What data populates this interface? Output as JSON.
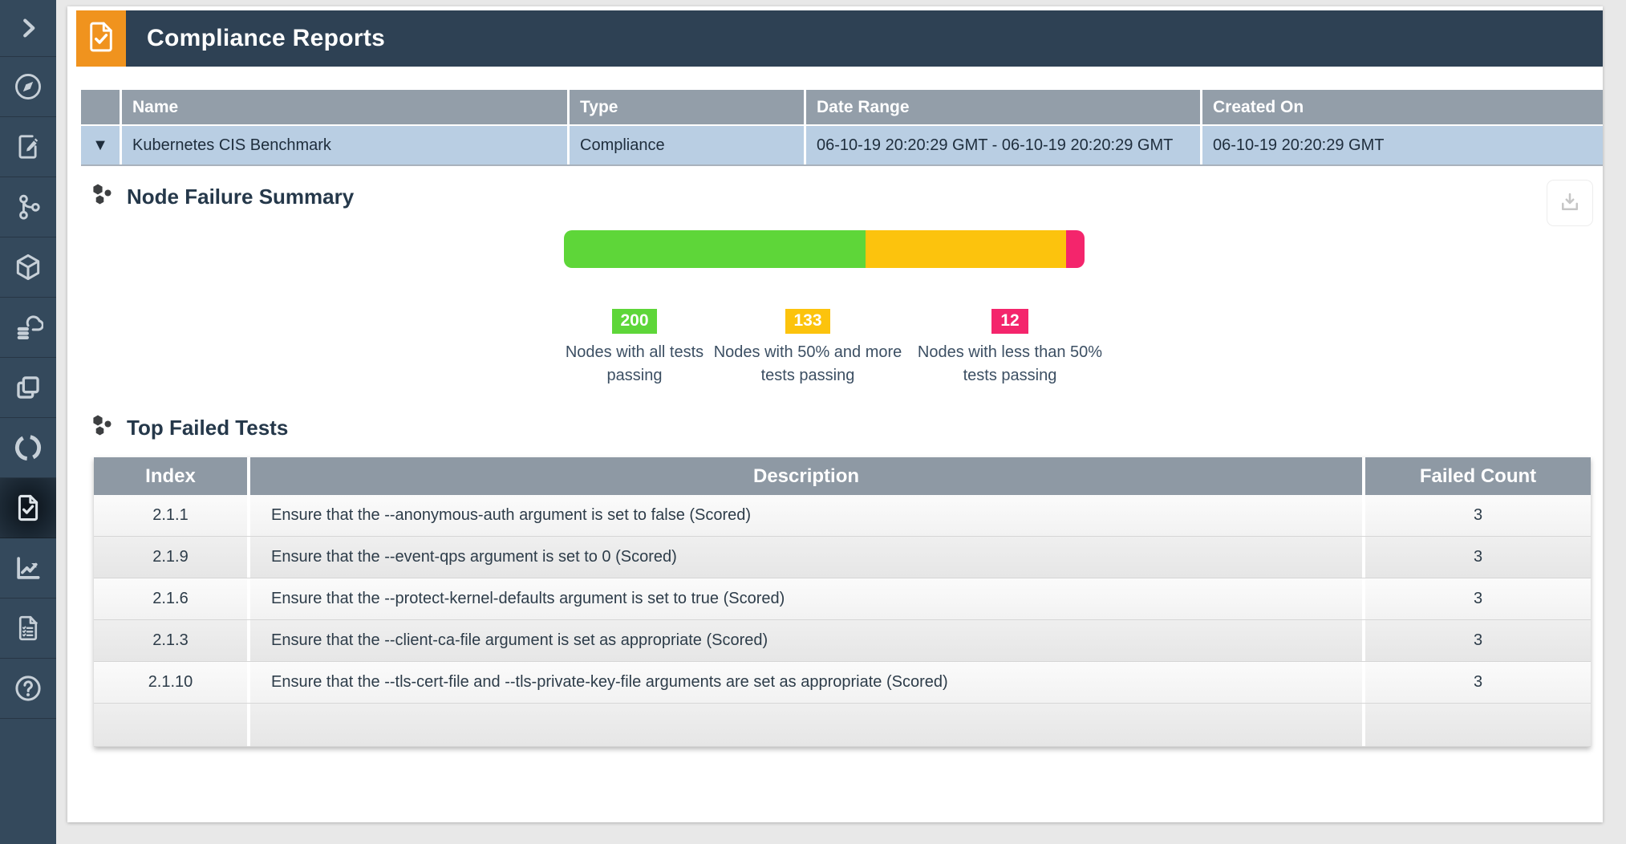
{
  "colors": {
    "accent_orange": "#f0931e",
    "header_navy": "#2e4154",
    "sidebar_navy": "#34495c",
    "table_header_gray": "#939ea9",
    "report_row_blue": "#b9cee3",
    "pass_green": "#5ed639",
    "warn_yellow": "#fcc30d",
    "fail_pink": "#f4256c"
  },
  "sidebar": {
    "items": [
      {
        "name": "expand",
        "icon": "chevron-right-icon",
        "active": false
      },
      {
        "name": "dashboard",
        "icon": "compass-icon",
        "active": false
      },
      {
        "name": "policy",
        "icon": "document-edit-icon",
        "active": false
      },
      {
        "name": "network",
        "icon": "network-branch-icon",
        "active": false
      },
      {
        "name": "assets",
        "icon": "cube-icon",
        "active": false
      },
      {
        "name": "registries",
        "icon": "cloud-database-icon",
        "active": false
      },
      {
        "name": "containers",
        "icon": "layers-icon",
        "active": false
      },
      {
        "name": "risk",
        "icon": "ring-icon",
        "active": false
      },
      {
        "name": "compliance",
        "icon": "document-check-icon",
        "active": true
      },
      {
        "name": "security-events",
        "icon": "line-chart-icon",
        "active": false
      },
      {
        "name": "notebook",
        "icon": "document-list-icon",
        "active": false
      },
      {
        "name": "help",
        "icon": "help-circle-icon",
        "active": false
      }
    ]
  },
  "header": {
    "title": "Compliance Reports"
  },
  "report_table": {
    "columns": {
      "name": "Name",
      "type": "Type",
      "date_range": "Date Range",
      "created_on": "Created On"
    },
    "row": {
      "expander": "▼",
      "name": "Kubernetes CIS Benchmark",
      "type": "Compliance",
      "date_range": "06-10-19 20:20:29 GMT - 06-10-19 20:20:29 GMT",
      "created_on": "06-10-19 20:20:29 GMT"
    }
  },
  "sections": {
    "node_failure_summary": {
      "title": "Node Failure Summary"
    },
    "top_failed_tests": {
      "title": "Top Failed Tests"
    }
  },
  "chart_data": {
    "type": "bar",
    "variant": "horizontal-stacked-single-bar",
    "title": "Node Failure Summary",
    "total": 345,
    "series": [
      {
        "name": "Nodes with all tests passing",
        "value": 200,
        "color": "#5ed639"
      },
      {
        "name": "Nodes with 50% and more tests passing",
        "value": 133,
        "color": "#fcc30d"
      },
      {
        "name": "Nodes with less than 50% tests passing",
        "value": 12,
        "color": "#f4256c"
      }
    ],
    "legend_position": "bottom"
  },
  "failed_tests_table": {
    "columns": {
      "index": "Index",
      "description": "Description",
      "failed_count": "Failed Count"
    },
    "rows": [
      {
        "index": "2.1.1",
        "description": "Ensure that the --anonymous-auth argument is set to false (Scored)",
        "failed_count": "3"
      },
      {
        "index": "2.1.9",
        "description": "Ensure that the --event-qps argument is set to 0 (Scored)",
        "failed_count": "3"
      },
      {
        "index": "2.1.6",
        "description": "Ensure that the --protect-kernel-defaults argument is set to true (Scored)",
        "failed_count": "3"
      },
      {
        "index": "2.1.3",
        "description": "Ensure that the --client-ca-file argument is set as appropriate (Scored)",
        "failed_count": "3"
      },
      {
        "index": "2.1.10",
        "description": "Ensure that the --tls-cert-file and --tls-private-key-file arguments are set as appropriate (Scored)",
        "failed_count": "3"
      }
    ]
  }
}
